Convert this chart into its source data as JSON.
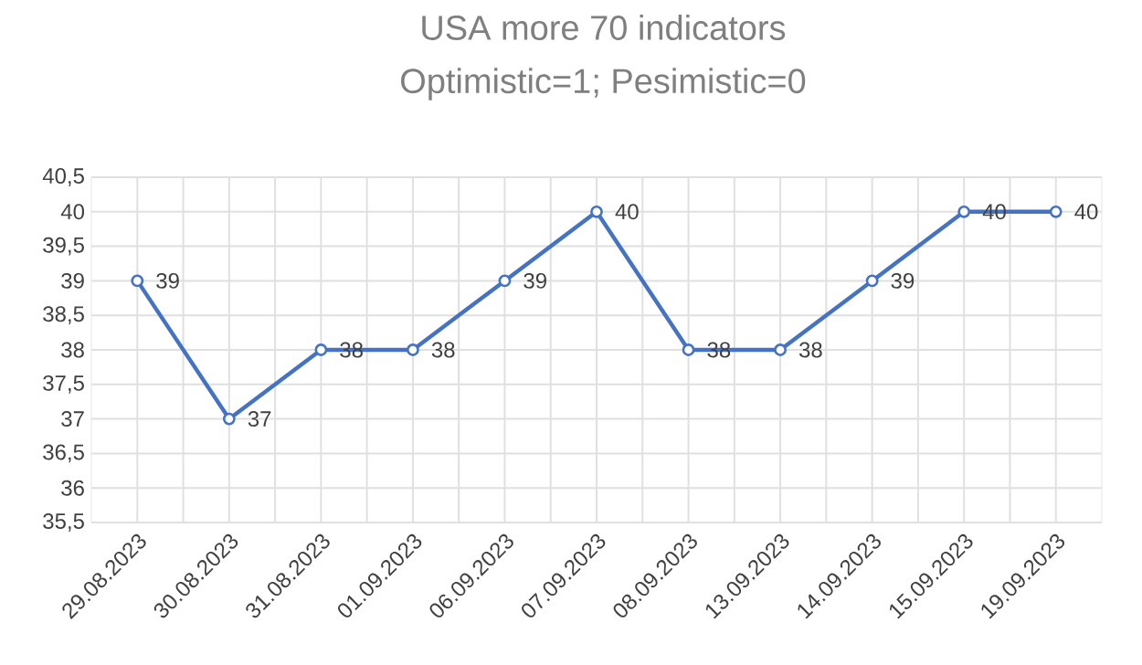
{
  "chart_data": {
    "type": "line",
    "title": "USA more 70 indicators",
    "subtitle": "Optimistic=1; Pesimistic=0",
    "categories": [
      "29.08.2023",
      "30.08.2023",
      "31.08.2023",
      "01.09.2023",
      "06.09.2023",
      "07.09.2023",
      "08.09.2023",
      "13.09.2023",
      "14.09.2023",
      "15.09.2023",
      "19.09.2023"
    ],
    "series": [
      {
        "color": "#4472c4",
        "values": [
          39,
          37,
          38,
          38,
          39,
          40,
          38,
          38,
          39,
          40,
          40
        ]
      }
    ],
    "ylim": [
      35.5,
      40.5
    ],
    "yticks": [
      {
        "value": 35.5,
        "label": "35,5"
      },
      36,
      {
        "value": 36.5,
        "label": "36,5"
      },
      37,
      {
        "value": 37.5,
        "label": "37,5"
      },
      38,
      {
        "value": 38.5,
        "label": "38,5"
      },
      39,
      {
        "value": 39.5,
        "label": "39,5"
      },
      40,
      {
        "value": 40.5,
        "label": "40,5"
      }
    ],
    "grid": true,
    "marker": "circle",
    "line_style": "solid",
    "data_labels": true
  }
}
